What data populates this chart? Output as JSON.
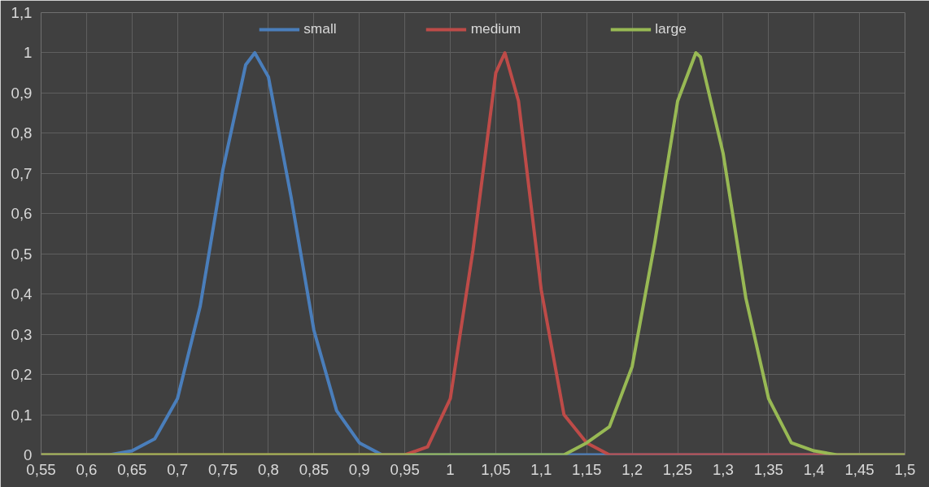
{
  "chart_data": {
    "type": "line",
    "xlim": [
      0.55,
      1.5
    ],
    "ylim": [
      0,
      1.1
    ],
    "xticks": [
      {
        "value": 0.55,
        "label": "0,55"
      },
      {
        "value": 0.6,
        "label": "0,6"
      },
      {
        "value": 0.65,
        "label": "0,65"
      },
      {
        "value": 0.7,
        "label": "0,7"
      },
      {
        "value": 0.75,
        "label": "0,75"
      },
      {
        "value": 0.8,
        "label": "0,8"
      },
      {
        "value": 0.85,
        "label": "0,85"
      },
      {
        "value": 0.9,
        "label": "0,9"
      },
      {
        "value": 0.95,
        "label": "0,95"
      },
      {
        "value": 1,
        "label": "1"
      },
      {
        "value": 1.05,
        "label": "1,05"
      },
      {
        "value": 1.1,
        "label": "1,1"
      },
      {
        "value": 1.15,
        "label": "1,15"
      },
      {
        "value": 1.2,
        "label": "1,2"
      },
      {
        "value": 1.25,
        "label": "1,25"
      },
      {
        "value": 1.3,
        "label": "1,3"
      },
      {
        "value": 1.35,
        "label": "1,35"
      },
      {
        "value": 1.4,
        "label": "1,4"
      },
      {
        "value": 1.45,
        "label": "1,45"
      },
      {
        "value": 1.5,
        "label": "1,5"
      }
    ],
    "yticks": [
      0,
      {
        "value": 0.1,
        "label": "0,1"
      },
      {
        "value": 0.2,
        "label": "0,2"
      },
      {
        "value": 0.3,
        "label": "0,3"
      },
      {
        "value": 0.4,
        "label": "0,4"
      },
      {
        "value": 0.5,
        "label": "0,5"
      },
      {
        "value": 0.6,
        "label": "0,6"
      },
      {
        "value": 0.7,
        "label": "0,7"
      },
      {
        "value": 0.8,
        "label": "0,8"
      },
      {
        "value": 0.9,
        "label": "0,9"
      },
      1,
      {
        "value": 1.1,
        "label": "1,1"
      }
    ],
    "grid": true,
    "legend": "top",
    "marker": "none",
    "line_style": "solid",
    "series": [
      {
        "name": "small",
        "color": "#4a7ebb",
        "x": [
          0.55,
          0.6,
          0.625,
          0.65,
          0.675,
          0.7,
          0.725,
          0.75,
          0.775,
          0.785,
          0.8,
          0.825,
          0.85,
          0.875,
          0.9,
          0.925,
          0.95,
          1.5
        ],
        "values": [
          0,
          0,
          0.0,
          0.01,
          0.04,
          0.14,
          0.37,
          0.71,
          0.97,
          1,
          0.94,
          0.64,
          0.31,
          0.11,
          0.03,
          0.0,
          0,
          0
        ]
      },
      {
        "name": "medium",
        "color": "#be4b48",
        "x": [
          0.55,
          0.95,
          0.975,
          1.0,
          1.025,
          1.05,
          1.06,
          1.075,
          1.1,
          1.125,
          1.15,
          1.175,
          1.2,
          1.5
        ],
        "values": [
          0,
          0,
          0.02,
          0.14,
          0.51,
          0.95,
          1,
          0.88,
          0.41,
          0.1,
          0.03,
          0.0,
          0,
          0
        ]
      },
      {
        "name": "large",
        "color": "#98b954",
        "x": [
          0.55,
          1.1,
          1.125,
          1.15,
          1.175,
          1.2,
          1.225,
          1.25,
          1.27,
          1.275,
          1.3,
          1.325,
          1.35,
          1.375,
          1.4,
          1.425,
          1.45,
          1.5
        ],
        "values": [
          0,
          0,
          0.0,
          0.03,
          0.07,
          0.22,
          0.53,
          0.88,
          1,
          0.99,
          0.75,
          0.39,
          0.14,
          0.03,
          0.01,
          0.0,
          0,
          0
        ]
      }
    ]
  }
}
